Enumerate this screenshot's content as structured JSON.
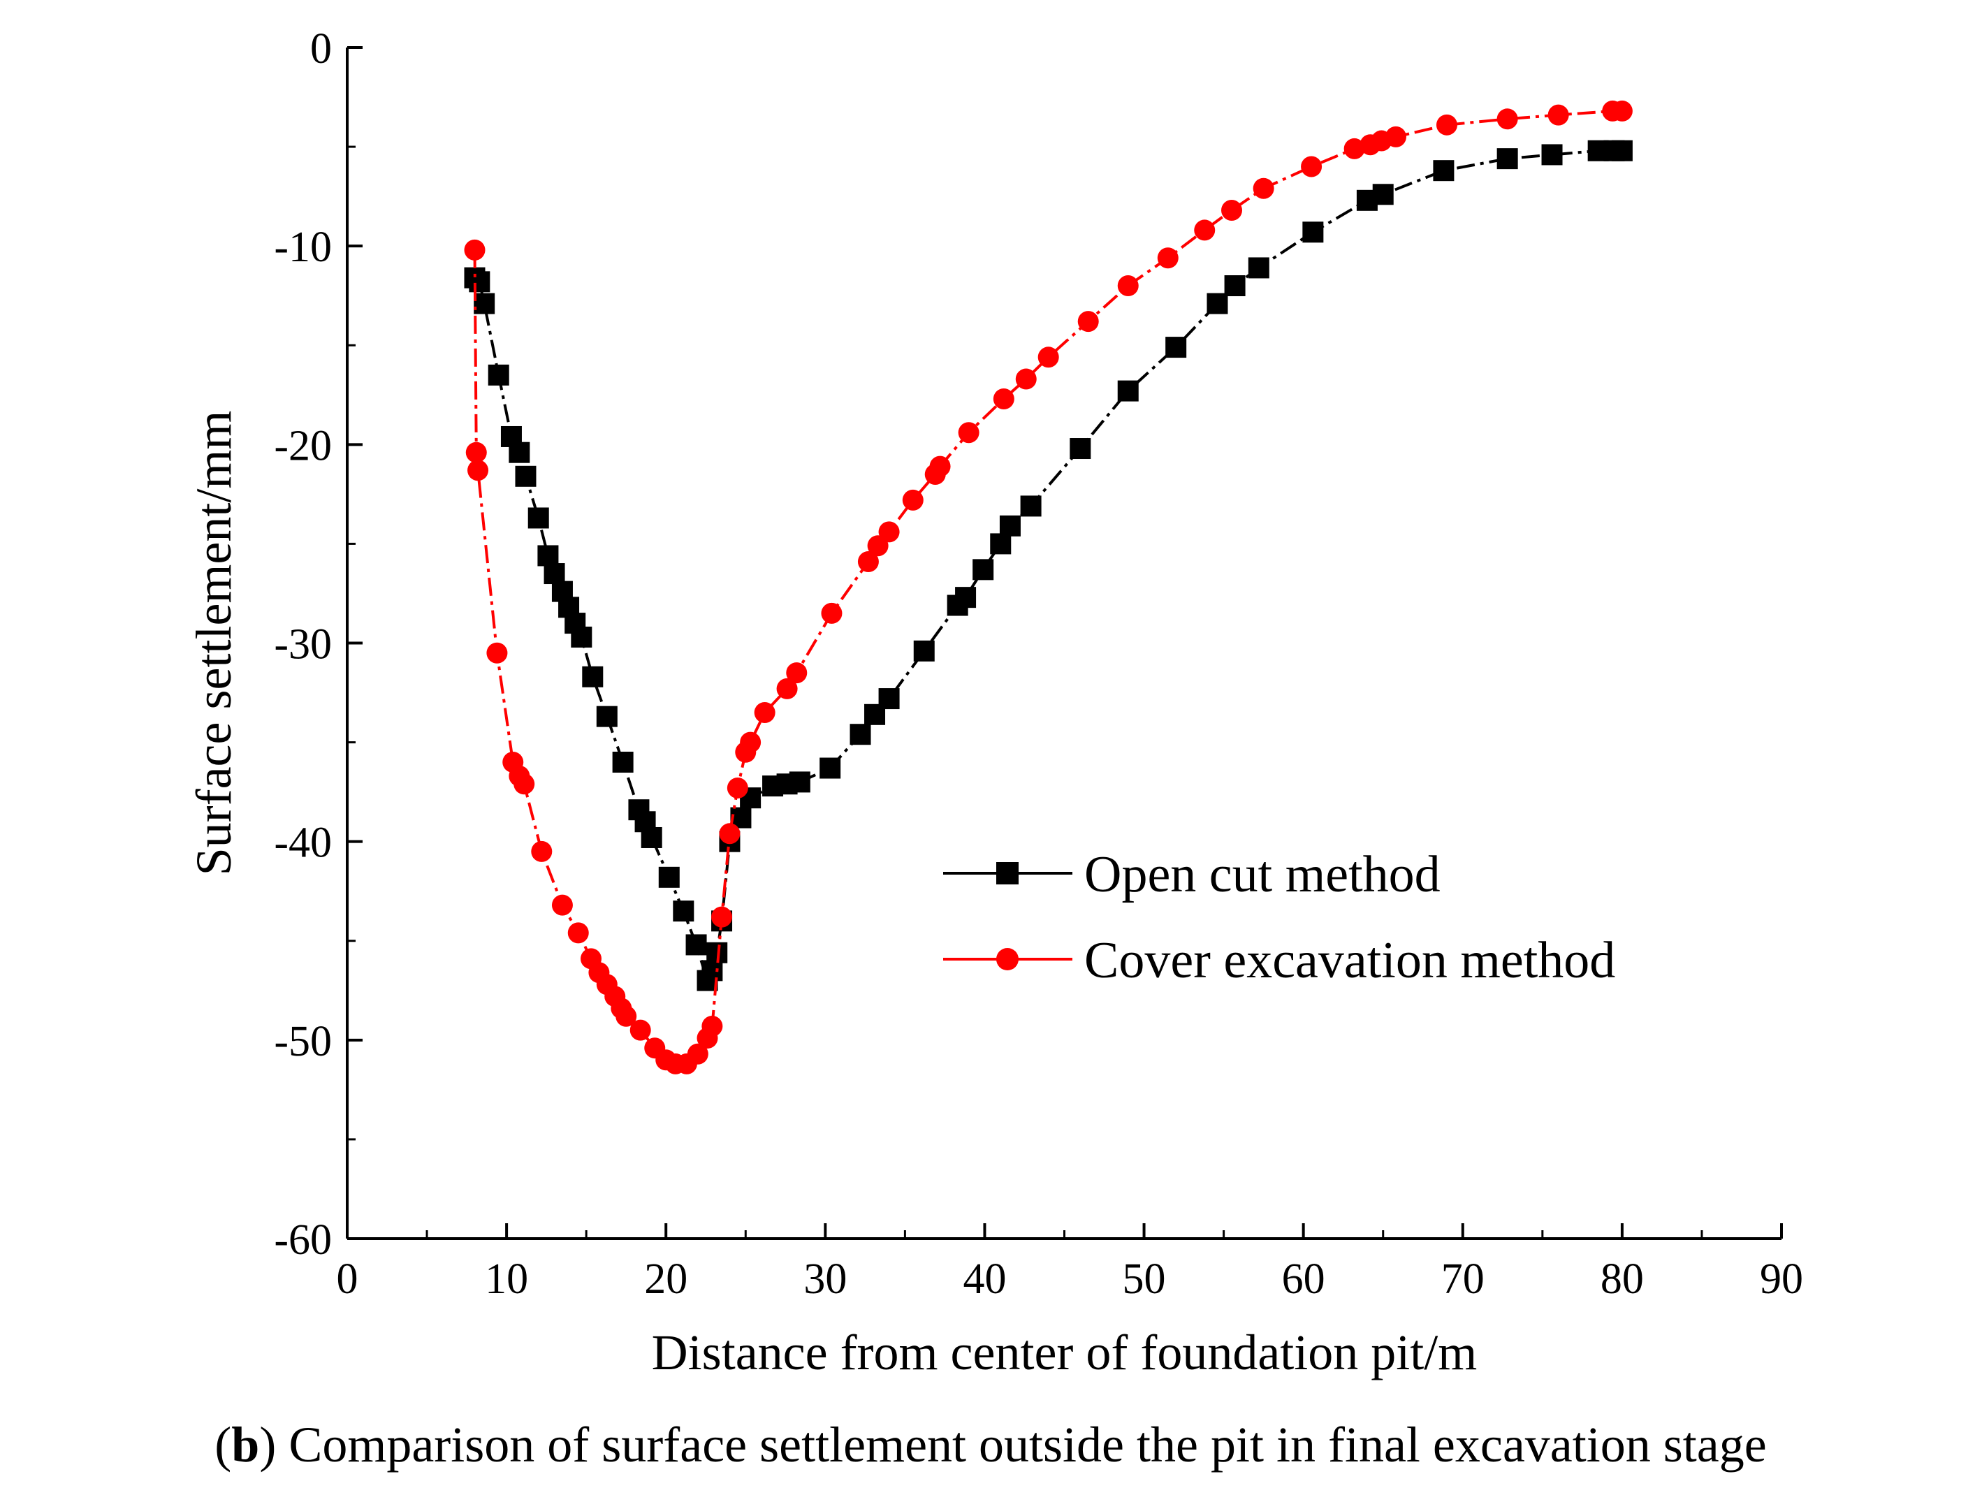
{
  "chart_data": {
    "type": "line",
    "title": "",
    "xlabel": "Distance from center of foundation pit/m",
    "ylabel": "Surface settlement/mm",
    "xlim": [
      0,
      90
    ],
    "ylim": [
      -60,
      0
    ],
    "x_ticks": [
      0,
      10,
      20,
      30,
      40,
      50,
      60,
      70,
      80,
      90
    ],
    "y_ticks": [
      0,
      -10,
      -20,
      -30,
      -40,
      -50,
      -60
    ],
    "grid": false,
    "legend_position": "center-right",
    "series": [
      {
        "name": "Open cut method",
        "color": "#000000",
        "marker": "square",
        "x": [
          8.0,
          8.3,
          8.6,
          9.5,
          10.3,
          10.8,
          11.2,
          12.0,
          12.6,
          13.0,
          13.5,
          13.9,
          14.3,
          14.7,
          15.4,
          16.3,
          17.3,
          18.3,
          18.7,
          19.1,
          20.2,
          21.1,
          21.9,
          22.6,
          22.9,
          23.2,
          23.5,
          24.0,
          24.7,
          25.3,
          26.7,
          27.6,
          28.4,
          30.3,
          32.2,
          33.1,
          34.0,
          36.2,
          38.3,
          38.8,
          39.9,
          41.0,
          41.6,
          42.9,
          46.0,
          49.0,
          52.0,
          54.6,
          55.7,
          57.2,
          60.6,
          64.0,
          65.0,
          68.8,
          72.8,
          75.6,
          78.5,
          79.5,
          80.0
        ],
        "y": [
          -11.6,
          -11.8,
          -12.9,
          -16.5,
          -19.6,
          -20.4,
          -21.6,
          -23.7,
          -25.6,
          -26.5,
          -27.4,
          -28.2,
          -29.0,
          -29.7,
          -31.7,
          -33.7,
          -36.0,
          -38.4,
          -39.0,
          -39.8,
          -41.8,
          -43.5,
          -45.2,
          -47.0,
          -46.5,
          -45.6,
          -44.0,
          -40.0,
          -38.8,
          -37.8,
          -37.2,
          -37.1,
          -37.0,
          -36.3,
          -34.6,
          -33.6,
          -32.8,
          -30.4,
          -28.1,
          -27.7,
          -26.3,
          -25.0,
          -24.1,
          -23.1,
          -20.2,
          -17.3,
          -15.1,
          -12.9,
          -12.0,
          -11.1,
          -9.3,
          -7.7,
          -7.4,
          -6.2,
          -5.6,
          -5.4,
          -5.2,
          -5.2,
          -5.2
        ]
      },
      {
        "name": "Cover excavation method",
        "color": "#ff0000",
        "marker": "circle",
        "x": [
          8.0,
          8.1,
          8.2,
          9.4,
          10.4,
          10.8,
          11.1,
          12.2,
          13.5,
          14.5,
          15.3,
          15.8,
          16.3,
          16.8,
          17.2,
          17.5,
          18.4,
          19.3,
          20.0,
          20.6,
          21.3,
          22.0,
          22.6,
          22.9,
          23.5,
          24.0,
          24.5,
          25.0,
          25.3,
          26.2,
          27.6,
          28.2,
          30.4,
          32.7,
          33.3,
          34.0,
          35.5,
          36.9,
          37.2,
          39.0,
          41.2,
          42.6,
          44.0,
          46.5,
          49.0,
          51.5,
          53.8,
          55.5,
          57.5,
          60.5,
          63.2,
          64.2,
          64.9,
          65.8,
          69.0,
          72.8,
          76.0,
          79.4,
          80.0
        ],
        "y": [
          -10.2,
          -20.4,
          -21.3,
          -30.5,
          -36.0,
          -36.7,
          -37.1,
          -40.5,
          -43.2,
          -44.6,
          -45.9,
          -46.6,
          -47.2,
          -47.8,
          -48.4,
          -48.8,
          -49.5,
          -50.4,
          -51.0,
          -51.2,
          -51.2,
          -50.7,
          -49.9,
          -49.3,
          -43.8,
          -39.6,
          -37.3,
          -35.5,
          -35.0,
          -33.5,
          -32.3,
          -31.5,
          -28.5,
          -25.9,
          -25.1,
          -24.4,
          -22.8,
          -21.5,
          -21.1,
          -19.4,
          -17.7,
          -16.7,
          -15.6,
          -13.8,
          -12.0,
          -10.6,
          -9.2,
          -8.2,
          -7.1,
          -6.0,
          -5.1,
          -4.9,
          -4.7,
          -4.5,
          -3.9,
          -3.6,
          -3.4,
          -3.2,
          -3.2
        ]
      }
    ],
    "caption_label": "b",
    "caption_text": "Comparison of surface settlement outside the pit in final excavation stage"
  }
}
